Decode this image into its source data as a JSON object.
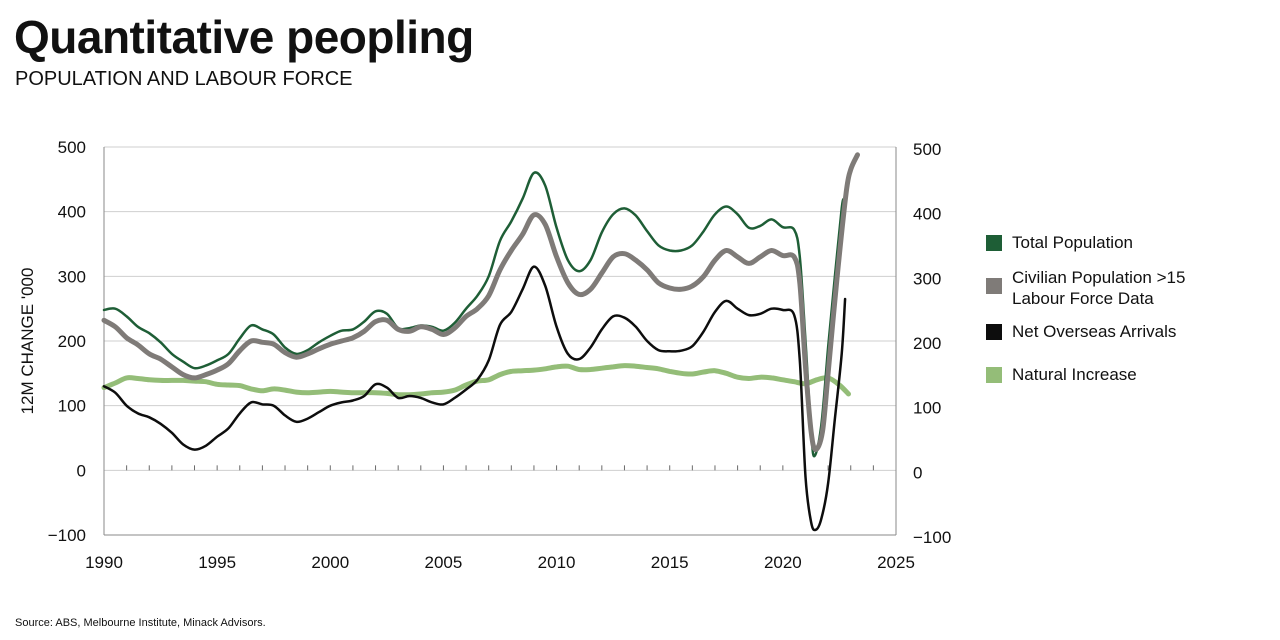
{
  "title": "Quantitative peopling",
  "subtitle": "POPULATION AND LABOUR FORCE",
  "source": "Source: ABS, Melbourne Institute, Minack Advisors.",
  "chart_data": {
    "type": "line",
    "ylabel": "12M CHANGE '000",
    "xlim": [
      1990,
      2025
    ],
    "ylim": [
      -100,
      500
    ],
    "x_ticks": [
      1990,
      1995,
      2000,
      2005,
      2010,
      2015,
      2020,
      2025
    ],
    "y_ticks": [
      -100,
      0,
      100,
      200,
      300,
      400,
      500
    ],
    "y_tick_labels_left": [
      "−100",
      "0",
      "100",
      "200",
      "300",
      "400",
      "500"
    ],
    "y_tick_labels_right": [
      "−100",
      "0",
      "100",
      "200",
      "300",
      "400",
      "500"
    ],
    "x_tick_labels": [
      "1990",
      "1995",
      "2000",
      "2005",
      "2010",
      "2015",
      "2020",
      "2025"
    ],
    "grid": true,
    "legend_position": "right",
    "series": [
      {
        "name": "Total Population",
        "color": "#1e5e36",
        "points": [
          [
            1990,
            248
          ],
          [
            1990.5,
            250
          ],
          [
            1991,
            238
          ],
          [
            1991.5,
            222
          ],
          [
            1992,
            212
          ],
          [
            1992.5,
            198
          ],
          [
            1993,
            180
          ],
          [
            1993.5,
            168
          ],
          [
            1994,
            158
          ],
          [
            1994.5,
            162
          ],
          [
            1995,
            170
          ],
          [
            1995.5,
            180
          ],
          [
            1996,
            204
          ],
          [
            1996.5,
            224
          ],
          [
            1997,
            218
          ],
          [
            1997.5,
            210
          ],
          [
            1998,
            190
          ],
          [
            1998.5,
            180
          ],
          [
            1999,
            186
          ],
          [
            1999.5,
            198
          ],
          [
            2000,
            208
          ],
          [
            2000.5,
            216
          ],
          [
            2001,
            218
          ],
          [
            2001.5,
            230
          ],
          [
            2002,
            246
          ],
          [
            2002.5,
            242
          ],
          [
            2003,
            220
          ],
          [
            2003.5,
            220
          ],
          [
            2004,
            224
          ],
          [
            2004.5,
            222
          ],
          [
            2005,
            216
          ],
          [
            2005.5,
            228
          ],
          [
            2006,
            250
          ],
          [
            2006.5,
            270
          ],
          [
            2007,
            300
          ],
          [
            2007.5,
            355
          ],
          [
            2008,
            385
          ],
          [
            2008.5,
            420
          ],
          [
            2009,
            460
          ],
          [
            2009.5,
            440
          ],
          [
            2010,
            375
          ],
          [
            2010.5,
            325
          ],
          [
            2011,
            308
          ],
          [
            2011.5,
            325
          ],
          [
            2012,
            368
          ],
          [
            2012.5,
            396
          ],
          [
            2013,
            405
          ],
          [
            2013.5,
            394
          ],
          [
            2014,
            370
          ],
          [
            2014.5,
            348
          ],
          [
            2015,
            340
          ],
          [
            2015.5,
            340
          ],
          [
            2016,
            348
          ],
          [
            2016.5,
            370
          ],
          [
            2017,
            396
          ],
          [
            2017.5,
            408
          ],
          [
            2018,
            396
          ],
          [
            2018.5,
            375
          ],
          [
            2019,
            378
          ],
          [
            2019.5,
            388
          ],
          [
            2020,
            376
          ],
          [
            2020.5,
            372
          ],
          [
            2020.75,
            330
          ],
          [
            2021,
            200
          ],
          [
            2021.25,
            60
          ],
          [
            2021.4,
            22
          ],
          [
            2021.7,
            70
          ],
          [
            2022,
            190
          ],
          [
            2022.3,
            300
          ],
          [
            2022.6,
            405
          ],
          [
            2022.7,
            420
          ]
        ]
      },
      {
        "name": "Civilian Population >15\nLabour Force Data",
        "color": "#7f7b78",
        "points": [
          [
            1990,
            232
          ],
          [
            1990.5,
            222
          ],
          [
            1991,
            205
          ],
          [
            1991.5,
            194
          ],
          [
            1992,
            180
          ],
          [
            1992.5,
            172
          ],
          [
            1993,
            160
          ],
          [
            1993.5,
            148
          ],
          [
            1994,
            143
          ],
          [
            1994.5,
            148
          ],
          [
            1995,
            155
          ],
          [
            1995.5,
            165
          ],
          [
            1996,
            185
          ],
          [
            1996.5,
            200
          ],
          [
            1997,
            198
          ],
          [
            1997.5,
            195
          ],
          [
            1998,
            182
          ],
          [
            1998.5,
            175
          ],
          [
            1999,
            180
          ],
          [
            1999.5,
            188
          ],
          [
            2000,
            195
          ],
          [
            2000.5,
            200
          ],
          [
            2001,
            205
          ],
          [
            2001.5,
            215
          ],
          [
            2002,
            230
          ],
          [
            2002.5,
            232
          ],
          [
            2003,
            218
          ],
          [
            2003.5,
            215
          ],
          [
            2004,
            222
          ],
          [
            2004.5,
            218
          ],
          [
            2005,
            210
          ],
          [
            2005.5,
            220
          ],
          [
            2006,
            238
          ],
          [
            2006.5,
            250
          ],
          [
            2007,
            270
          ],
          [
            2007.5,
            310
          ],
          [
            2008,
            340
          ],
          [
            2008.5,
            365
          ],
          [
            2009,
            395
          ],
          [
            2009.5,
            380
          ],
          [
            2010,
            330
          ],
          [
            2010.5,
            290
          ],
          [
            2011,
            272
          ],
          [
            2011.5,
            280
          ],
          [
            2012,
            305
          ],
          [
            2012.5,
            330
          ],
          [
            2013,
            335
          ],
          [
            2013.5,
            325
          ],
          [
            2014,
            310
          ],
          [
            2014.5,
            290
          ],
          [
            2015,
            282
          ],
          [
            2015.5,
            280
          ],
          [
            2016,
            285
          ],
          [
            2016.5,
            300
          ],
          [
            2017,
            325
          ],
          [
            2017.5,
            340
          ],
          [
            2018,
            330
          ],
          [
            2018.5,
            320
          ],
          [
            2019,
            330
          ],
          [
            2019.5,
            340
          ],
          [
            2020,
            332
          ],
          [
            2020.5,
            330
          ],
          [
            2020.75,
            290
          ],
          [
            2021,
            160
          ],
          [
            2021.25,
            60
          ],
          [
            2021.45,
            32
          ],
          [
            2021.75,
            60
          ],
          [
            2022,
            150
          ],
          [
            2022.4,
            300
          ],
          [
            2022.8,
            430
          ],
          [
            2023,
            465
          ],
          [
            2023.3,
            488
          ]
        ]
      },
      {
        "name": "Net Overseas Arrivals",
        "color": "#0d0d0d",
        "points": [
          [
            1990,
            130
          ],
          [
            1990.5,
            120
          ],
          [
            1991,
            100
          ],
          [
            1991.5,
            88
          ],
          [
            1992,
            82
          ],
          [
            1992.5,
            72
          ],
          [
            1993,
            58
          ],
          [
            1993.5,
            40
          ],
          [
            1994,
            32
          ],
          [
            1994.5,
            38
          ],
          [
            1995,
            52
          ],
          [
            1995.5,
            65
          ],
          [
            1996,
            88
          ],
          [
            1996.5,
            105
          ],
          [
            1997,
            102
          ],
          [
            1997.5,
            100
          ],
          [
            1998,
            85
          ],
          [
            1998.5,
            75
          ],
          [
            1999,
            80
          ],
          [
            1999.5,
            90
          ],
          [
            2000,
            100
          ],
          [
            2000.5,
            105
          ],
          [
            2001,
            108
          ],
          [
            2001.5,
            115
          ],
          [
            2002,
            133
          ],
          [
            2002.5,
            128
          ],
          [
            2003,
            112
          ],
          [
            2003.5,
            115
          ],
          [
            2004,
            112
          ],
          [
            2004.5,
            105
          ],
          [
            2005,
            102
          ],
          [
            2005.5,
            112
          ],
          [
            2006,
            125
          ],
          [
            2006.5,
            140
          ],
          [
            2007,
            170
          ],
          [
            2007.5,
            225
          ],
          [
            2008,
            245
          ],
          [
            2008.5,
            280
          ],
          [
            2009,
            315
          ],
          [
            2009.5,
            285
          ],
          [
            2010,
            222
          ],
          [
            2010.5,
            180
          ],
          [
            2011,
            172
          ],
          [
            2011.5,
            190
          ],
          [
            2012,
            218
          ],
          [
            2012.5,
            238
          ],
          [
            2013,
            236
          ],
          [
            2013.5,
            222
          ],
          [
            2014,
            200
          ],
          [
            2014.5,
            186
          ],
          [
            2015,
            184
          ],
          [
            2015.5,
            185
          ],
          [
            2016,
            192
          ],
          [
            2016.5,
            215
          ],
          [
            2017,
            245
          ],
          [
            2017.5,
            262
          ],
          [
            2018,
            250
          ],
          [
            2018.5,
            240
          ],
          [
            2019,
            242
          ],
          [
            2019.5,
            250
          ],
          [
            2020,
            248
          ],
          [
            2020.5,
            240
          ],
          [
            2020.75,
            170
          ],
          [
            2021,
            -10
          ],
          [
            2021.25,
            -80
          ],
          [
            2021.45,
            -92
          ],
          [
            2021.7,
            -75
          ],
          [
            2022,
            -20
          ],
          [
            2022.3,
            80
          ],
          [
            2022.6,
            180
          ],
          [
            2022.75,
            265
          ]
        ]
      },
      {
        "name": "Natural Increase",
        "color": "#94bd78",
        "points": [
          [
            1990,
            128
          ],
          [
            1990.5,
            135
          ],
          [
            1991,
            143
          ],
          [
            1991.5,
            142
          ],
          [
            1992,
            140
          ],
          [
            1992.5,
            139
          ],
          [
            1993,
            139
          ],
          [
            1993.5,
            139
          ],
          [
            1994,
            138
          ],
          [
            1994.5,
            137
          ],
          [
            1995,
            133
          ],
          [
            1995.5,
            132
          ],
          [
            1996,
            131
          ],
          [
            1996.5,
            126
          ],
          [
            1997,
            123
          ],
          [
            1997.5,
            126
          ],
          [
            1998,
            124
          ],
          [
            1998.5,
            121
          ],
          [
            1999,
            120
          ],
          [
            1999.5,
            121
          ],
          [
            2000,
            122
          ],
          [
            2000.5,
            121
          ],
          [
            2001,
            120
          ],
          [
            2001.5,
            120
          ],
          [
            2002,
            120
          ],
          [
            2002.5,
            119
          ],
          [
            2003,
            117
          ],
          [
            2003.5,
            117
          ],
          [
            2004,
            118
          ],
          [
            2004.5,
            120
          ],
          [
            2005,
            121
          ],
          [
            2005.5,
            124
          ],
          [
            2006,
            132
          ],
          [
            2006.5,
            138
          ],
          [
            2007,
            140
          ],
          [
            2007.5,
            148
          ],
          [
            2008,
            153
          ],
          [
            2008.5,
            154
          ],
          [
            2009,
            155
          ],
          [
            2009.5,
            157
          ],
          [
            2010,
            160
          ],
          [
            2010.5,
            161
          ],
          [
            2011,
            156
          ],
          [
            2011.5,
            156
          ],
          [
            2012,
            158
          ],
          [
            2012.5,
            160
          ],
          [
            2013,
            162
          ],
          [
            2013.5,
            161
          ],
          [
            2014,
            159
          ],
          [
            2014.5,
            157
          ],
          [
            2015,
            153
          ],
          [
            2015.5,
            150
          ],
          [
            2016,
            149
          ],
          [
            2016.5,
            152
          ],
          [
            2017,
            154
          ],
          [
            2017.5,
            150
          ],
          [
            2018,
            144
          ],
          [
            2018.5,
            142
          ],
          [
            2019,
            144
          ],
          [
            2019.5,
            143
          ],
          [
            2020,
            140
          ],
          [
            2020.5,
            137
          ],
          [
            2021,
            134
          ],
          [
            2021.5,
            140
          ],
          [
            2022,
            143
          ],
          [
            2022.5,
            132
          ],
          [
            2022.9,
            118
          ]
        ]
      }
    ]
  }
}
